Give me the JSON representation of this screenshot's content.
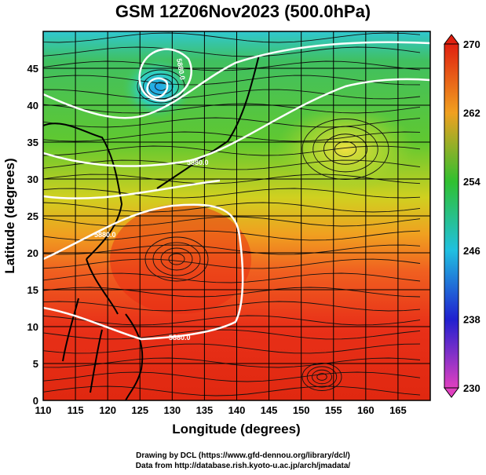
{
  "title": "GSM 12Z06Nov2023 (500.0hPa)",
  "map": {
    "lon_range": [
      110,
      170
    ],
    "lat_range": [
      0,
      50
    ],
    "xlabel": "Longitude (degrees)",
    "ylabel": "Latitude  (degrees)",
    "x_ticks": [
      "110",
      "115",
      "120",
      "125",
      "130",
      "135",
      "140",
      "145",
      "150",
      "155",
      "160",
      "165"
    ],
    "y_ticks": [
      "0",
      "5",
      "10",
      "15",
      "20",
      "25",
      "30",
      "35",
      "40",
      "45"
    ],
    "grid": "on",
    "field": "temperature shading with streamlines and height contours",
    "contour_labels": [
      "5880.0",
      "5880.0",
      "5880.0",
      "5880.0"
    ]
  },
  "colorbar": {
    "ticks": [
      "230",
      "238",
      "246",
      "254",
      "262",
      "270"
    ],
    "range": [
      230,
      270
    ],
    "colors": {
      "230": "#e040c0",
      "238": "#2020d0",
      "246": "#20c0e0",
      "254": "#30c030",
      "262": "#f0a020",
      "270": "#e02010"
    }
  },
  "credits": {
    "line1": "Drawing by DCL (https://www.gfd-dennou.org/library/dcl/)",
    "line2": "Data from http://database.rish.kyoto-u.ac.jp/arch/jmadata/"
  }
}
